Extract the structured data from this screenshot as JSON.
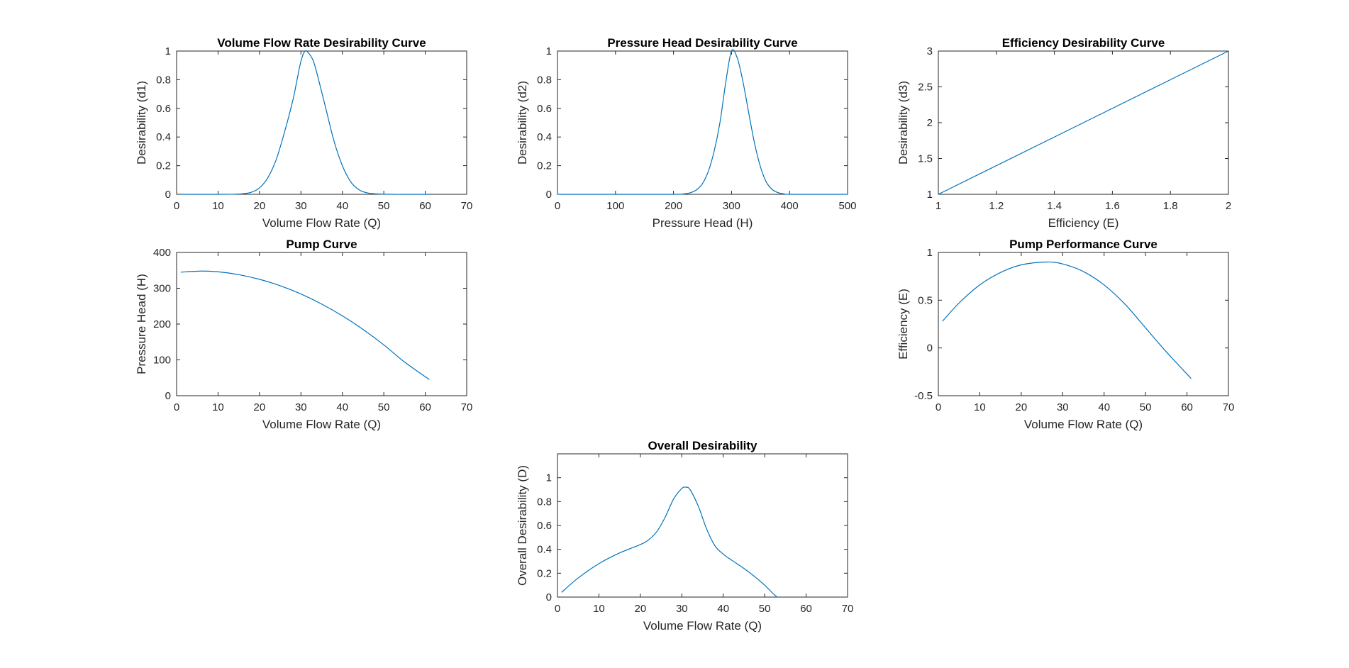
{
  "figure": {
    "background": "#ffffff",
    "line_color": "#0072bd",
    "axis_color": "#262626"
  },
  "chart_data": [
    {
      "id": "d1",
      "type": "line",
      "title": "Volume Flow Rate Desirability Curve",
      "xlabel": "Volume Flow Rate (Q)",
      "ylabel": "Desirability (d1)",
      "xlim": [
        0,
        70
      ],
      "ylim": [
        0,
        1
      ],
      "xticks": [
        0,
        10,
        20,
        30,
        40,
        50,
        60,
        70
      ],
      "yticks": [
        0,
        0.2,
        0.4,
        0.6,
        0.8,
        1
      ],
      "grid": false,
      "series": [
        {
          "x": [
            1,
            5,
            10,
            14,
            16,
            18,
            20,
            22,
            24,
            26,
            28,
            29,
            30,
            31,
            32,
            33,
            34,
            36,
            38,
            40,
            42,
            44,
            46,
            48,
            52,
            56,
            61
          ],
          "y": [
            0,
            0,
            0,
            0.001,
            0.004,
            0.014,
            0.045,
            0.115,
            0.24,
            0.43,
            0.65,
            0.79,
            0.93,
            1.0,
            0.98,
            0.93,
            0.83,
            0.6,
            0.37,
            0.2,
            0.088,
            0.032,
            0.01,
            0.003,
            0,
            0,
            0
          ]
        }
      ]
    },
    {
      "id": "d2",
      "type": "line",
      "title": "Pressure Head Desirability Curve",
      "xlabel": "Pressure Head (H)",
      "ylabel": "Desirability (d2)",
      "xlim": [
        0,
        500
      ],
      "ylim": [
        0,
        1
      ],
      "xticks": [
        0,
        100,
        200,
        300,
        400,
        500
      ],
      "yticks": [
        0,
        0.2,
        0.4,
        0.6,
        0.8,
        1
      ],
      "grid": false,
      "series": [
        {
          "x": [
            0,
            100,
            200,
            220,
            230,
            240,
            250,
            260,
            270,
            280,
            290,
            300,
            310,
            320,
            330,
            340,
            350,
            360,
            370,
            380,
            390,
            400,
            450,
            500
          ],
          "y": [
            0,
            0,
            0,
            0.004,
            0.012,
            0.032,
            0.075,
            0.16,
            0.3,
            0.5,
            0.78,
            1.0,
            0.95,
            0.78,
            0.56,
            0.35,
            0.19,
            0.085,
            0.034,
            0.012,
            0.003,
            0,
            0,
            0
          ]
        }
      ]
    },
    {
      "id": "d3",
      "type": "line",
      "title": "Efficiency Desirability Curve",
      "xlabel": "Efficiency (E)",
      "ylabel": "Desirability (d3)",
      "xlim": [
        1,
        2
      ],
      "ylim": [
        1,
        3
      ],
      "xticks": [
        1,
        1.2,
        1.4,
        1.6,
        1.8,
        2
      ],
      "yticks": [
        1,
        1.5,
        2,
        2.5,
        3
      ],
      "grid": false,
      "series": [
        {
          "x": [
            1,
            2
          ],
          "y": [
            1,
            3
          ]
        }
      ]
    },
    {
      "id": "pump",
      "type": "line",
      "title": "Pump Curve",
      "xlabel": "Volume Flow Rate (Q)",
      "ylabel": "Pressure Head (H)",
      "xlim": [
        0,
        70
      ],
      "ylim": [
        0,
        400
      ],
      "xticks": [
        0,
        10,
        20,
        30,
        40,
        50,
        60,
        70
      ],
      "yticks": [
        0,
        100,
        200,
        300,
        400
      ],
      "grid": false,
      "series": [
        {
          "x": [
            1,
            6,
            10,
            15,
            20,
            25,
            30,
            35,
            40,
            45,
            50,
            55,
            61
          ],
          "y": [
            345,
            348,
            346,
            338,
            325,
            307,
            284,
            256,
            223,
            185,
            142,
            94,
            45
          ]
        }
      ]
    },
    {
      "id": "perf",
      "type": "line",
      "title": "Pump Performance Curve",
      "xlabel": "Volume Flow Rate (Q)",
      "ylabel": "Efficiency (E)",
      "xlim": [
        0,
        70
      ],
      "ylim": [
        -0.5,
        1
      ],
      "xticks": [
        0,
        10,
        20,
        30,
        40,
        50,
        60,
        70
      ],
      "yticks": [
        -0.5,
        0,
        0.5,
        1
      ],
      "grid": false,
      "series": [
        {
          "x": [
            1,
            5,
            10,
            15,
            20,
            26,
            30,
            35,
            40,
            45,
            50,
            55,
            61
          ],
          "y": [
            0.28,
            0.47,
            0.66,
            0.79,
            0.87,
            0.9,
            0.88,
            0.8,
            0.66,
            0.46,
            0.21,
            -0.04,
            -0.32
          ]
        }
      ]
    },
    {
      "id": "overall",
      "type": "line",
      "title": "Overall Desirability",
      "xlabel": "Volume Flow Rate (Q)",
      "ylabel": "Overall Desirability (D)",
      "xlim": [
        0,
        70
      ],
      "ylim": [
        0,
        1.2
      ],
      "xticks": [
        0,
        10,
        20,
        30,
        40,
        50,
        60,
        70
      ],
      "yticks": [
        0,
        0.2,
        0.4,
        0.6,
        0.8,
        1
      ],
      "grid": false,
      "series": [
        {
          "x": [
            1,
            5,
            10,
            15,
            20,
            22,
            24,
            26,
            28,
            30,
            31,
            32,
            34,
            36,
            38,
            40,
            42,
            45,
            48,
            50,
            52,
            53
          ],
          "y": [
            0.04,
            0.16,
            0.28,
            0.37,
            0.44,
            0.48,
            0.55,
            0.67,
            0.82,
            0.91,
            0.92,
            0.9,
            0.76,
            0.57,
            0.43,
            0.36,
            0.31,
            0.24,
            0.16,
            0.1,
            0.03,
            0
          ]
        }
      ]
    }
  ]
}
